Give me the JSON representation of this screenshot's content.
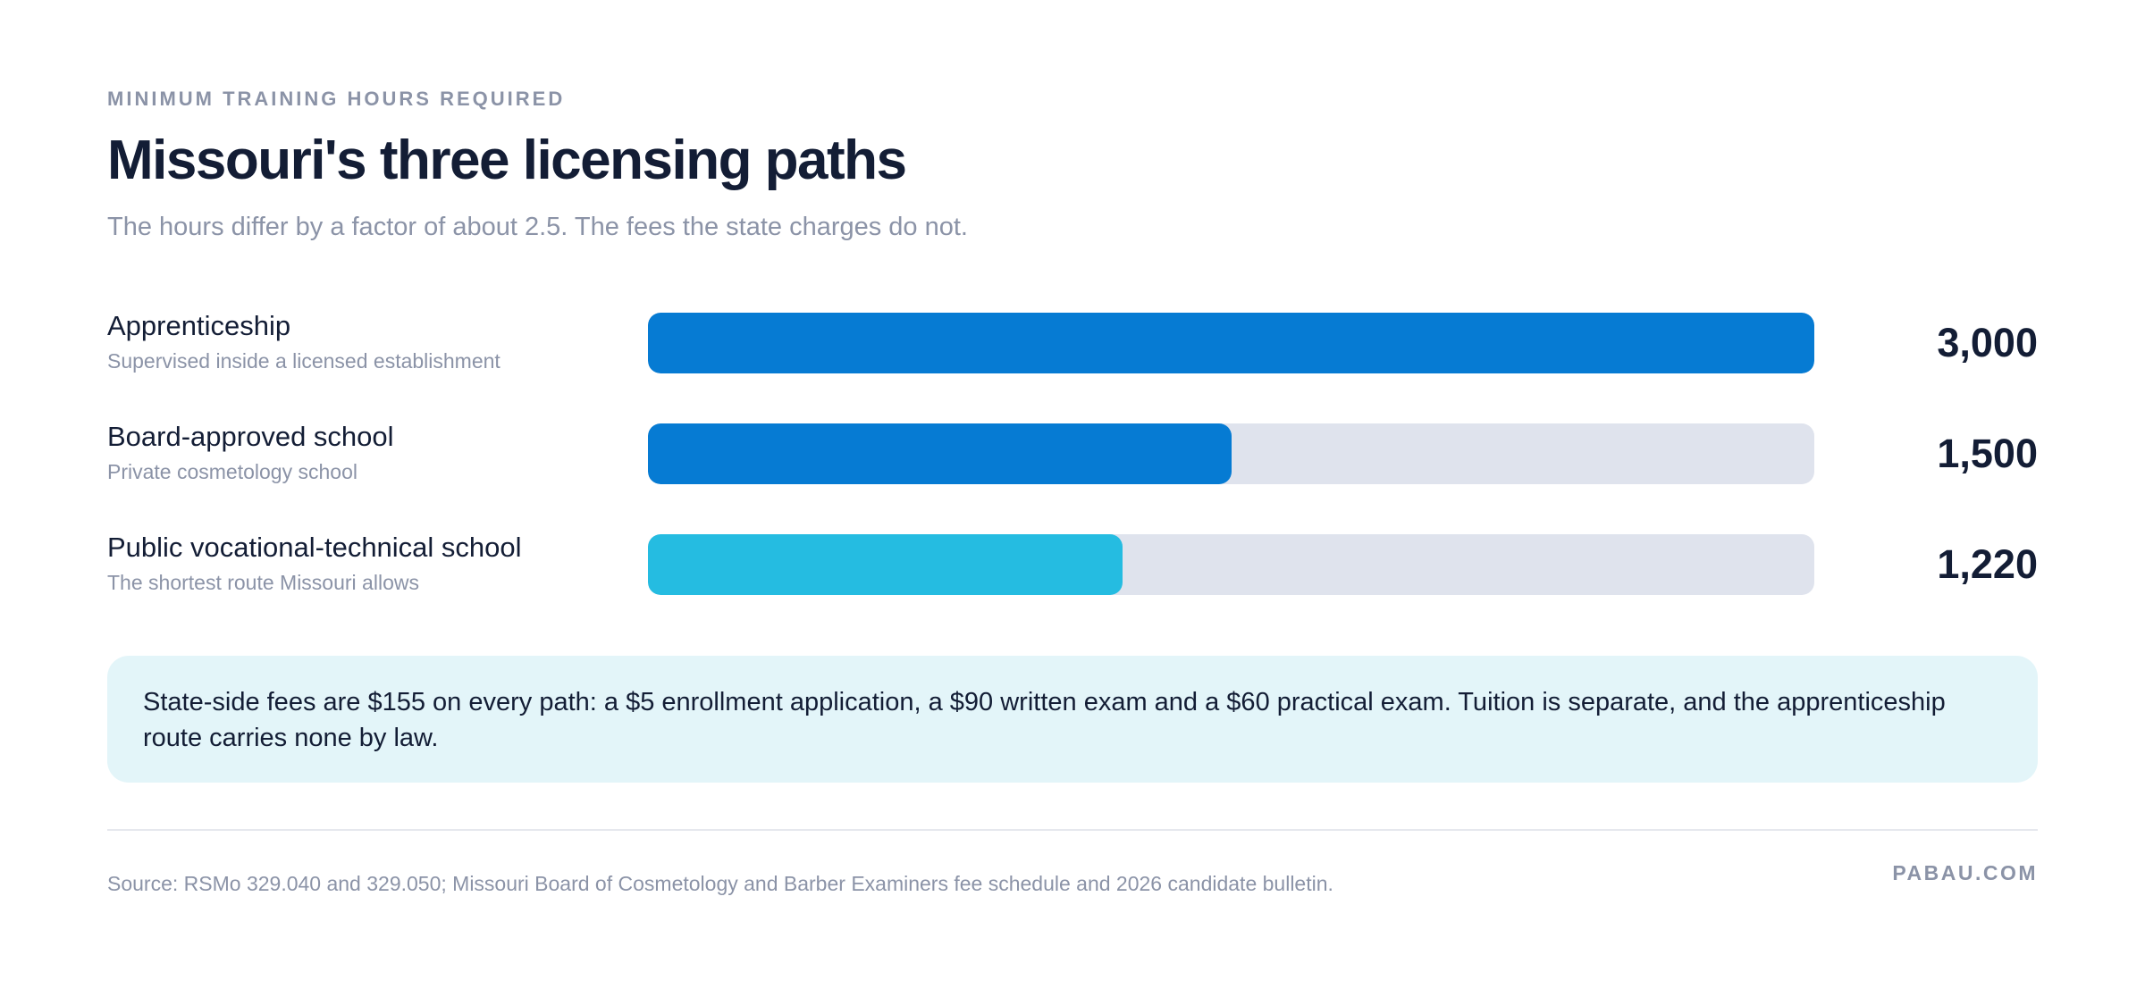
{
  "header": {
    "eyebrow": "MINIMUM TRAINING HOURS REQUIRED",
    "title": "Missouri's three licensing paths",
    "subtitle": "The hours differ by a factor of about 2.5. The fees the state charges do not."
  },
  "chart_data": {
    "type": "bar",
    "orientation": "horizontal",
    "categories": [
      "Apprenticeship",
      "Board-approved school",
      "Public vocational-technical school"
    ],
    "descriptions": [
      "Supervised inside a licensed establishment",
      "Private cosmetology school",
      "The shortest route Missouri allows"
    ],
    "values": [
      3000,
      1500,
      1220
    ],
    "value_labels": [
      "3,000",
      "1,500",
      "1,220"
    ],
    "xlim": [
      0,
      3000
    ],
    "bar_colors": [
      "#067bd3",
      "#067bd3",
      "#25bce1"
    ],
    "track_color": "#dfe3ed",
    "grid": false
  },
  "note": {
    "text": "State-side fees are $155 on every path: a $5 enrollment application, a $90 written exam and a $60 practical exam. Tuition is separate, and the apprenticeship route carries none by law."
  },
  "footer": {
    "source": "Source: RSMo 329.040 and 329.050; Missouri Board of Cosmetology and Barber Examiners fee schedule and 2026 candidate bulletin.",
    "brand": "PABAU.COM"
  }
}
